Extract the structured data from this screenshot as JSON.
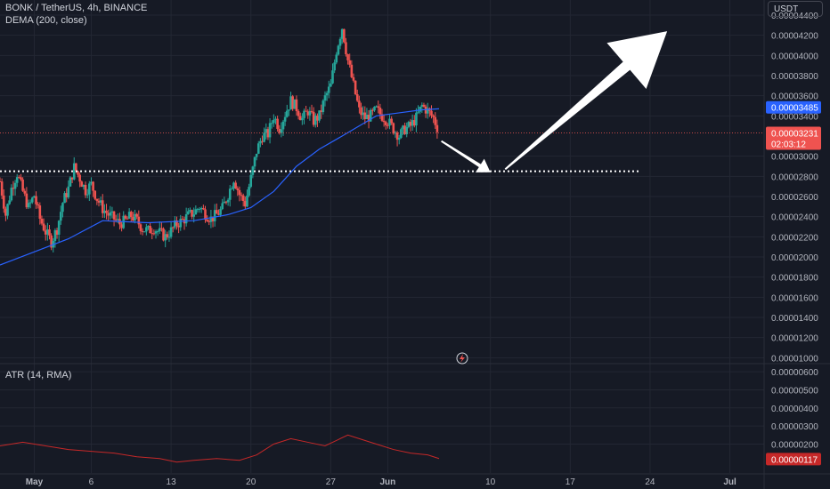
{
  "header": {
    "symbol_line": "BONK / TetherUS, 4h, BINANCE",
    "indicator_line": "DEMA (200, close)",
    "currency": "USDT"
  },
  "atr_panel": {
    "title": "ATR (14, RMA)"
  },
  "colors": {
    "background": "#161a25",
    "up": "#26a69a",
    "down": "#ef5350",
    "dema": "#2962ff",
    "atr": "#c62828",
    "annotation": "#ffffff"
  },
  "chart_data": [
    {
      "type": "candlestick",
      "title": "BONK / TetherUS, 4h, BINANCE",
      "ylim": [
        9.5e-06,
        4.55e-05
      ],
      "y_ticks": [
        "0.00004400",
        "0.00004200",
        "0.00004000",
        "0.00003800",
        "0.00003600",
        "0.00003400",
        "0.00003000",
        "0.00002800",
        "0.00002600",
        "0.00002400",
        "0.00002200",
        "0.00002000",
        "0.00001800",
        "0.00001600",
        "0.00001400",
        "0.00001200",
        "0.00001000"
      ],
      "y_tick_values": [
        4.4e-05,
        4.2e-05,
        4e-05,
        3.8e-05,
        3.6e-05,
        3.4e-05,
        3e-05,
        2.8e-05,
        2.6e-05,
        2.4e-05,
        2.2e-05,
        2e-05,
        1.8e-05,
        1.6e-05,
        1.4e-05,
        1.2e-05,
        1e-05
      ],
      "x_ticks": [
        "May",
        "6",
        "13",
        "20",
        "27",
        "Jun",
        "10",
        "17",
        "24",
        "Jul"
      ],
      "x_tick_days": [
        0,
        5,
        12,
        19,
        26,
        31,
        40,
        47,
        54,
        61
      ],
      "x_range_days": [
        -3,
        64
      ],
      "price_path": [
        [
          -3,
          2.75e-05
        ],
        [
          -2.5,
          2.42e-05
        ],
        [
          -2,
          2.68e-05
        ],
        [
          -1.5,
          2.83e-05
        ],
        [
          -1,
          2.65e-05
        ],
        [
          -0.5,
          2.49e-05
        ],
        [
          0,
          2.61e-05
        ],
        [
          0.5,
          2.38e-05
        ],
        [
          1,
          2.25e-05
        ],
        [
          1.5,
          2.15e-05
        ],
        [
          2,
          2.28e-05
        ],
        [
          2.5,
          2.54e-05
        ],
        [
          3,
          2.68e-05
        ],
        [
          3.5,
          2.89e-05
        ],
        [
          4,
          2.78e-05
        ],
        [
          4.5,
          2.66e-05
        ],
        [
          5,
          2.72e-05
        ],
        [
          5.5,
          2.58e-05
        ],
        [
          6,
          2.48e-05
        ],
        [
          6.5,
          2.42e-05
        ],
        [
          7,
          2.38e-05
        ],
        [
          7.5,
          2.33e-05
        ],
        [
          8,
          2.36e-05
        ],
        [
          8.5,
          2.41e-05
        ],
        [
          9,
          2.36e-05
        ],
        [
          9.5,
          2.28e-05
        ],
        [
          10,
          2.26e-05
        ],
        [
          10.5,
          2.29e-05
        ],
        [
          11,
          2.24e-05
        ],
        [
          11.5,
          2.2e-05
        ],
        [
          12,
          2.26e-05
        ],
        [
          12.5,
          2.33e-05
        ],
        [
          13,
          2.36e-05
        ],
        [
          13.5,
          2.41e-05
        ],
        [
          14,
          2.44e-05
        ],
        [
          14.5,
          2.5e-05
        ],
        [
          15,
          2.43e-05
        ],
        [
          15.5,
          2.38e-05
        ],
        [
          16,
          2.42e-05
        ],
        [
          16.5,
          2.48e-05
        ],
        [
          17,
          2.62e-05
        ],
        [
          17.5,
          2.78e-05
        ],
        [
          18,
          2.62e-05
        ],
        [
          18.5,
          2.53e-05
        ],
        [
          19,
          2.78e-05
        ],
        [
          19.5,
          3.05e-05
        ],
        [
          20,
          3.2e-05
        ],
        [
          20.5,
          3.22e-05
        ],
        [
          21,
          3.4e-05
        ],
        [
          21.5,
          3.28e-05
        ],
        [
          22,
          3.42e-05
        ],
        [
          22.5,
          3.55e-05
        ],
        [
          23,
          3.48e-05
        ],
        [
          23.5,
          3.37e-05
        ],
        [
          24,
          3.45e-05
        ],
        [
          24.5,
          3.35e-05
        ],
        [
          25,
          3.4e-05
        ],
        [
          25.5,
          3.58e-05
        ],
        [
          26,
          3.7e-05
        ],
        [
          26.5,
          4.05e-05
        ],
        [
          27,
          4.28e-05
        ],
        [
          27.5,
          3.95e-05
        ],
        [
          28,
          3.7e-05
        ],
        [
          28.5,
          3.45e-05
        ],
        [
          29,
          3.38e-05
        ],
        [
          29.5,
          3.4e-05
        ],
        [
          30,
          3.46e-05
        ],
        [
          30.5,
          3.4e-05
        ],
        [
          31,
          3.35e-05
        ],
        [
          31.5,
          3.27e-05
        ],
        [
          32,
          3.2e-05
        ],
        [
          32.5,
          3.27e-05
        ],
        [
          33,
          3.3e-05
        ],
        [
          33.5,
          3.38e-05
        ],
        [
          34,
          3.5e-05
        ],
        [
          34.5,
          3.45e-05
        ],
        [
          35,
          3.38e-05
        ],
        [
          35.5,
          3.24e-05
        ]
      ],
      "dema_path": [
        [
          -3,
          1.92e-05
        ],
        [
          0,
          2.05e-05
        ],
        [
          3,
          2.18e-05
        ],
        [
          6,
          2.36e-05
        ],
        [
          10,
          2.34e-05
        ],
        [
          14,
          2.36e-05
        ],
        [
          17,
          2.42e-05
        ],
        [
          19,
          2.49e-05
        ],
        [
          21,
          2.65e-05
        ],
        [
          23,
          2.9e-05
        ],
        [
          25,
          3.07e-05
        ],
        [
          27,
          3.2e-05
        ],
        [
          28.5,
          3.3e-05
        ],
        [
          30,
          3.4e-05
        ],
        [
          32,
          3.43e-05
        ],
        [
          34,
          3.46e-05
        ],
        [
          35.5,
          3.47e-05
        ]
      ],
      "current_dema_label": "0.00003485",
      "current_price_label": "0.00003231",
      "countdown": "02:03:12",
      "current_price": 3.231e-05,
      "current_dema": 3.485e-05,
      "support_level": 2.85e-05,
      "support_range_days": [
        -3,
        53
      ],
      "projection_arrows": [
        {
          "from": [
            35.7,
            3.15e-05
          ],
          "to": [
            40.0,
            2.84e-05
          ]
        },
        {
          "from": [
            41.3,
            2.87e-05
          ],
          "to": [
            55.5,
            4.24e-05
          ]
        }
      ]
    },
    {
      "type": "line",
      "title": "ATR (14, RMA)",
      "ylim": [
        4e-07,
        6.4e-06
      ],
      "y_ticks": [
        "0.00000600",
        "0.00000500",
        "0.00000400",
        "0.00000300",
        "0.00000200"
      ],
      "y_tick_values": [
        6e-06,
        5e-06,
        4e-06,
        3e-06,
        2e-06
      ],
      "current_label": "0.00000117",
      "current_value": 1.17e-06,
      "atr_path": [
        [
          -3,
          1.9e-06
        ],
        [
          -1,
          2.1e-06
        ],
        [
          1,
          1.9e-06
        ],
        [
          3,
          1.7e-06
        ],
        [
          5,
          1.6e-06
        ],
        [
          7,
          1.5e-06
        ],
        [
          9,
          1.3e-06
        ],
        [
          11,
          1.2e-06
        ],
        [
          12.5,
          1e-06
        ],
        [
          14,
          1.1e-06
        ],
        [
          16,
          1.2e-06
        ],
        [
          18,
          1.1e-06
        ],
        [
          19.5,
          1.4e-06
        ],
        [
          21,
          2e-06
        ],
        [
          22.5,
          2.3e-06
        ],
        [
          24,
          2.1e-06
        ],
        [
          25.5,
          1.9e-06
        ],
        [
          26.5,
          2.2e-06
        ],
        [
          27.5,
          2.5e-06
        ],
        [
          28.5,
          2.3e-06
        ],
        [
          30,
          2e-06
        ],
        [
          31.5,
          1.7e-06
        ],
        [
          33,
          1.5e-06
        ],
        [
          34.5,
          1.4e-06
        ],
        [
          35.5,
          1.2e-06
        ]
      ]
    }
  ]
}
